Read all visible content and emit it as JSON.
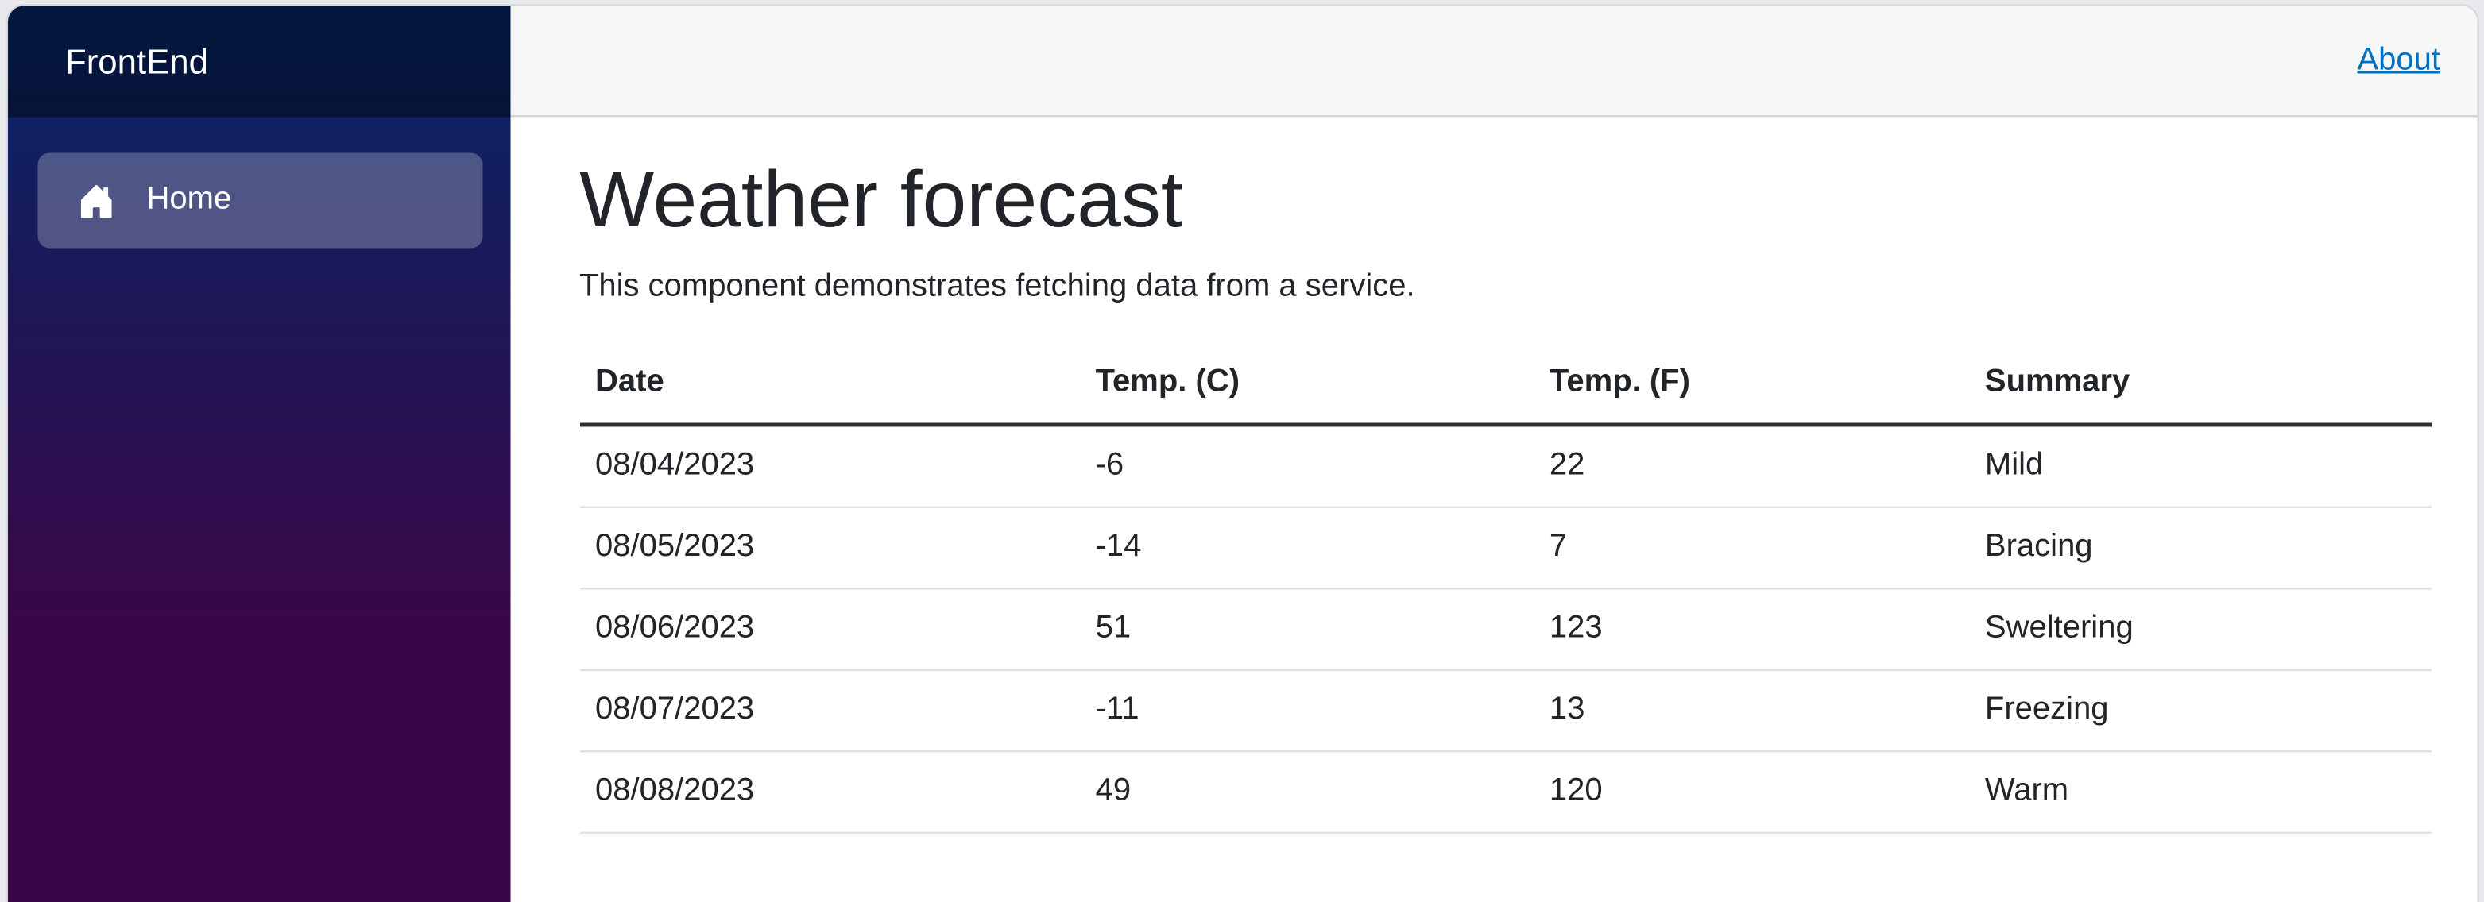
{
  "sidebar": {
    "brand": "FrontEnd",
    "items": [
      {
        "label": "Home",
        "icon": "house-icon",
        "active": true
      }
    ]
  },
  "topbar": {
    "links": [
      {
        "label": "About"
      }
    ]
  },
  "main": {
    "title": "Weather forecast",
    "subtitle": "This component demonstrates fetching data from a service.",
    "table": {
      "columns": [
        "Date",
        "Temp. (C)",
        "Temp. (F)",
        "Summary"
      ],
      "rows": [
        [
          "08/04/2023",
          "-6",
          "22",
          "Mild"
        ],
        [
          "08/05/2023",
          "-14",
          "7",
          "Bracing"
        ],
        [
          "08/06/2023",
          "51",
          "123",
          "Sweltering"
        ],
        [
          "08/07/2023",
          "-11",
          "13",
          "Freezing"
        ],
        [
          "08/08/2023",
          "49",
          "120",
          "Warm"
        ]
      ]
    }
  },
  "colors": {
    "sidebar_gradient_top": "#052767",
    "sidebar_gradient_bottom": "#3a0647",
    "sidebar_brandbar_overlay": "rgba(0,0,0,0.4)",
    "nav_active_bg": "rgba(255,255,255,0.25)",
    "topbar_bg": "#f7f7f7",
    "topbar_border": "#d6d5d5",
    "link_blue": "#0071c1",
    "text": "#212529",
    "table_row_border": "#dee2e6",
    "table_header_border": "#2c3034"
  }
}
